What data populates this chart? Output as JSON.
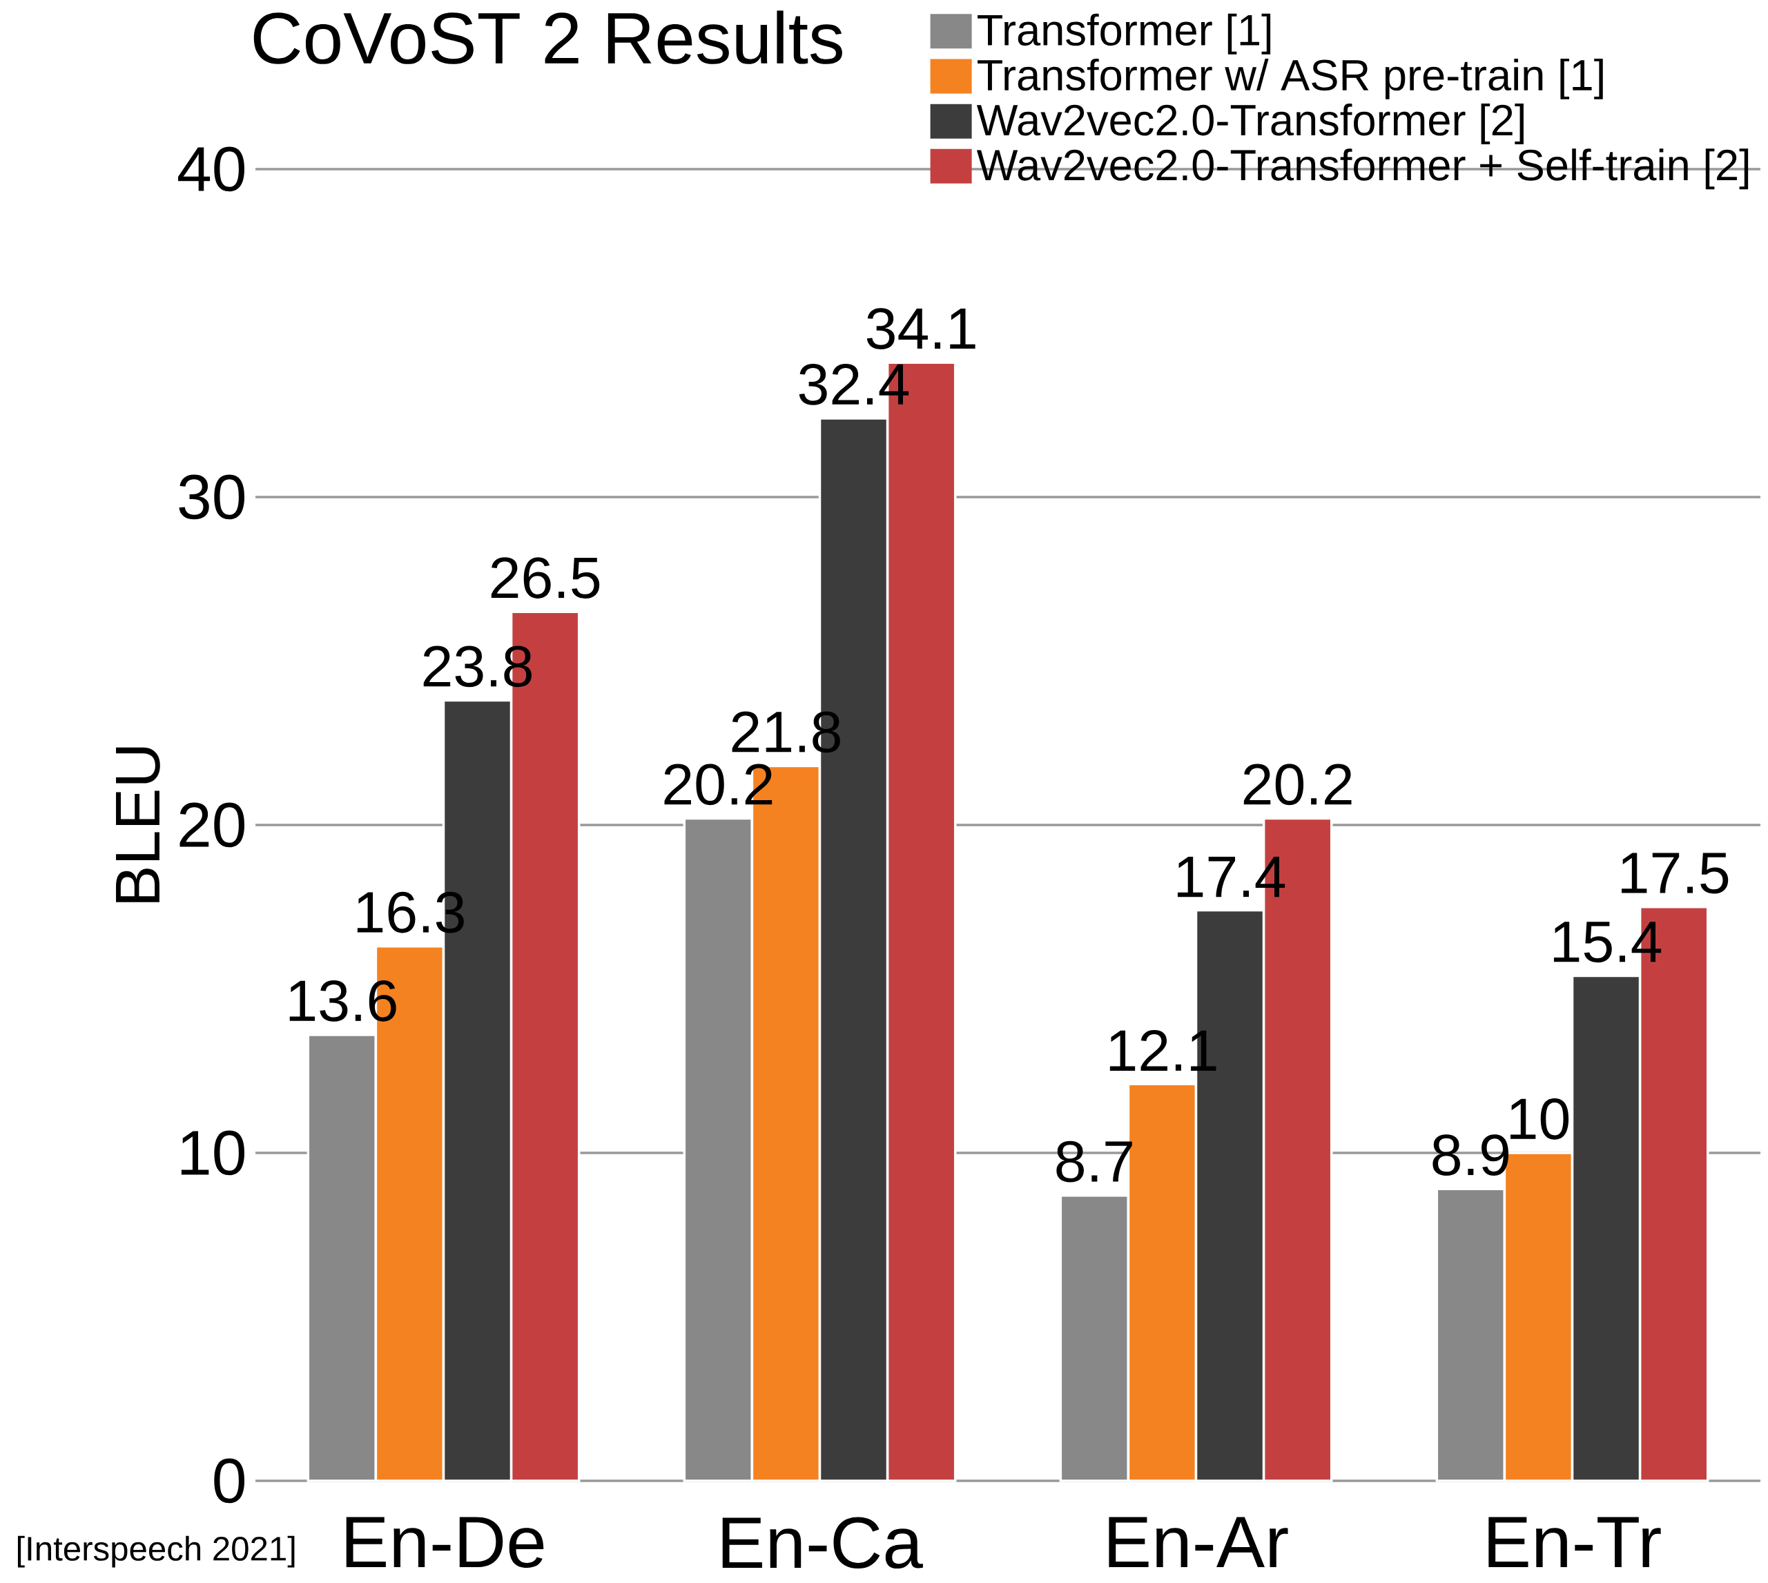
{
  "chart_data": {
    "type": "bar",
    "title": "CoVoST 2 Results",
    "ylabel": "BLEU",
    "categories": [
      "En-De",
      "En-Ca",
      "En-Ar",
      "En-Tr"
    ],
    "series": [
      {
        "name": "Transformer [1]",
        "color": "#888888",
        "values": [
          13.6,
          20.2,
          8.7,
          8.9
        ]
      },
      {
        "name": "Transformer w/ ASR pre-train [1]",
        "color": "#f58220",
        "values": [
          16.3,
          21.8,
          12.1,
          10
        ]
      },
      {
        "name": "Wav2vec2.0-Transformer [2]",
        "color": "#3c3c3c",
        "values": [
          23.8,
          32.4,
          17.4,
          15.4
        ]
      },
      {
        "name": "Wav2vec2.0-Transformer + Self-train [2]",
        "color": "#c44040",
        "values": [
          26.5,
          34.1,
          20.2,
          17.5
        ]
      }
    ],
    "ylim": [
      0,
      40
    ],
    "yticks": [
      0,
      10,
      20,
      30,
      40
    ],
    "grid": "y",
    "legend": "top right",
    "data_labels": true,
    "annotations": [
      "[Interspeech 2021]"
    ]
  }
}
